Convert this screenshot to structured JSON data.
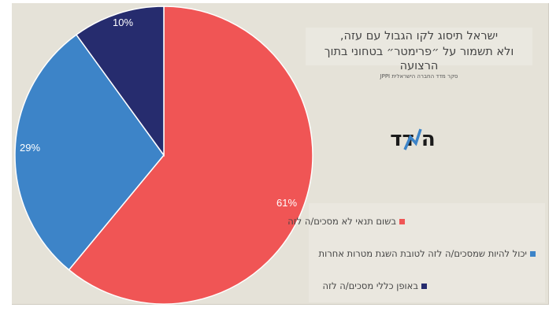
{
  "chart_data": {
    "type": "pie",
    "title_lines": [
      "ישראל תיסוג לקו הגבול עם עזה,",
      "ולא תשמור על ״פרימטר״ בטחוני בתוך הרצועה"
    ],
    "subtitle": "סקר מדד החברה הישראלית JPPI",
    "legend_position": "bottom-right",
    "slices": [
      {
        "label": "בשום תנאי לא מסכים/ה לזה",
        "value": 61,
        "data_label": "61%",
        "color": "#f05555"
      },
      {
        "label": "יכול להיות שמסכים/ה לזה לטובת השגת מטרות אחרות",
        "value": 29,
        "data_label": "29%",
        "color": "#3d84c8"
      },
      {
        "label": "באופן כללי מסכים/ה לזה",
        "value": 10,
        "data_label": "10%",
        "color": "#262c6e"
      }
    ]
  },
  "logo_text": "המדד",
  "background_color": "#e5e2d8"
}
